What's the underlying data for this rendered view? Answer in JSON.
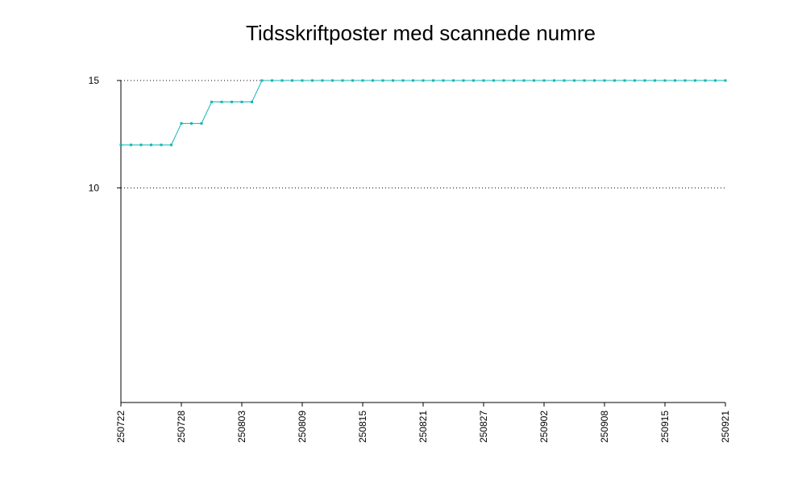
{
  "chart_data": {
    "type": "line",
    "title": "Tidsskriftposter med scannede numre",
    "xlabel": "",
    "ylabel": "",
    "ylim": [
      0,
      15
    ],
    "y_ticks": [
      10,
      15
    ],
    "grid": "horizontal dotted at y ticks",
    "legend": "none",
    "colors": {
      "series": "#12b5b5",
      "axis": "#000000",
      "grid": "#000000"
    },
    "x_tick_labels": [
      "250722",
      "250728",
      "250803",
      "250809",
      "250815",
      "250821",
      "250827",
      "250902",
      "250908",
      "250915",
      "250921"
    ],
    "series": [
      {
        "values": [
          12,
          12,
          12,
          12,
          12,
          12,
          13,
          13,
          13,
          14,
          14,
          14,
          14,
          14,
          15,
          15,
          15,
          15,
          15,
          15,
          15,
          15,
          15,
          15,
          15,
          15,
          15,
          15,
          15,
          15,
          15,
          15,
          15,
          15,
          15,
          15,
          15,
          15,
          15,
          15,
          15,
          15,
          15,
          15,
          15,
          15,
          15,
          15,
          15,
          15,
          15,
          15,
          15,
          15,
          15,
          15,
          15,
          15,
          15,
          15,
          15
        ]
      }
    ]
  }
}
